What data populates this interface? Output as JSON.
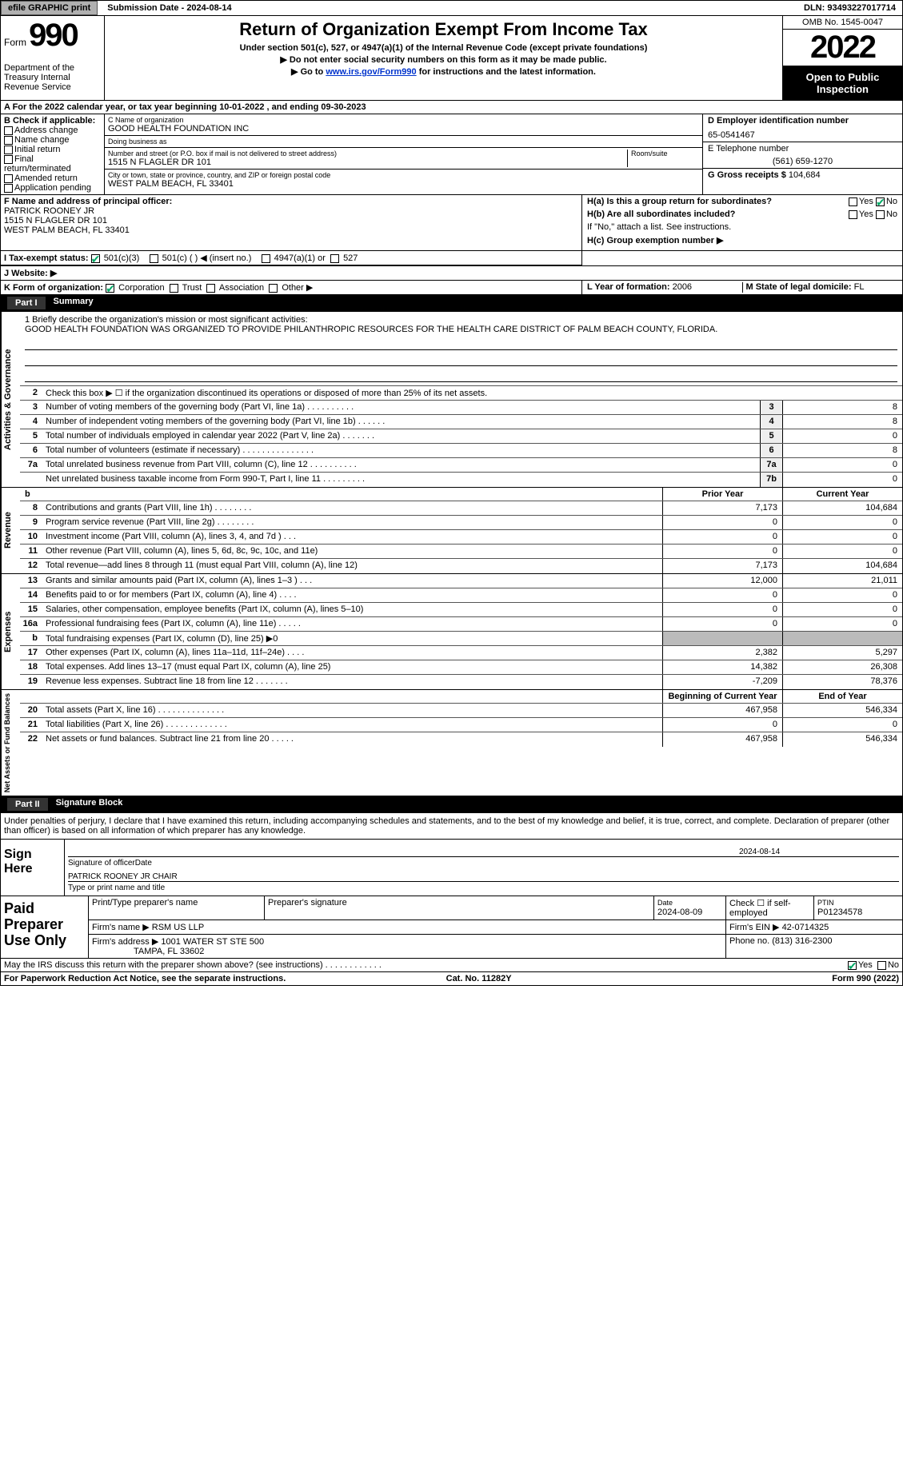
{
  "topbar": {
    "efile": "efile GRAPHIC print",
    "submission": "Submission Date - 2024-08-14",
    "dln": "DLN: 93493227017714"
  },
  "header": {
    "form_word": "Form",
    "form_no": "990",
    "title": "Return of Organization Exempt From Income Tax",
    "sub1": "Under section 501(c), 527, or 4947(a)(1) of the Internal Revenue Code (except private foundations)",
    "sub2": "▶ Do not enter social security numbers on this form as it may be made public.",
    "sub3_pre": "▶ Go to ",
    "sub3_link": "www.irs.gov/Form990",
    "sub3_post": " for instructions and the latest information.",
    "dept": "Department of the Treasury Internal Revenue Service",
    "omb": "OMB No. 1545-0047",
    "year": "2022",
    "inspect": "Open to Public Inspection"
  },
  "lineA": "A For the 2022 calendar year, or tax year beginning 10-01-2022    , and ending 09-30-2023",
  "checkB": {
    "label": "B Check if applicable:",
    "opts": [
      "Address change",
      "Name change",
      "Initial return",
      "Final return/terminated",
      "Amended return",
      "Application pending"
    ]
  },
  "orgC": {
    "name_lbl": "C Name of organization",
    "name": "GOOD HEALTH FOUNDATION INC",
    "dba_lbl": "Doing business as",
    "dba": "",
    "addr_lbl": "Number and street (or P.O. box if mail is not delivered to street address)",
    "room_lbl": "Room/suite",
    "addr": "1515 N FLAGLER DR 101",
    "city_lbl": "City or town, state or province, country, and ZIP or foreign postal code",
    "city": "WEST PALM BEACH, FL  33401"
  },
  "colD": {
    "ein_lbl": "D Employer identification number",
    "ein": "65-0541467",
    "tel_lbl": "E Telephone number",
    "tel": "(561) 659-1270",
    "gross_lbl": "G Gross receipts $",
    "gross": "104,684"
  },
  "secF": {
    "label": "F  Name and address of principal officer:",
    "name": "PATRICK ROONEY JR",
    "addr1": "1515 N FLAGLER DR 101",
    "addr2": "WEST PALM BEACH, FL  33401"
  },
  "secH": {
    "ha": "H(a)  Is this a group return for subordinates?",
    "hb": "H(b)  Are all subordinates included?",
    "hb_note": "If \"No,\" attach a list. See instructions.",
    "hc": "H(c)  Group exemption number ▶",
    "yes": "Yes",
    "no": "No"
  },
  "secI": {
    "label": "I  Tax-exempt status:",
    "o1": "501(c)(3)",
    "o2": "501(c) (  ) ◀ (insert no.)",
    "o3": "4947(a)(1) or",
    "o4": "527"
  },
  "secJ": "J  Website: ▶",
  "secK": {
    "label": "K Form of organization:",
    "o1": "Corporation",
    "o2": "Trust",
    "o3": "Association",
    "o4": "Other ▶"
  },
  "secL": {
    "label": "L Year of formation:",
    "val": "2006"
  },
  "secM": {
    "label": "M State of legal domicile:",
    "val": "FL"
  },
  "part1": {
    "no": "Part I",
    "title": "Summary"
  },
  "mission": {
    "lbl": "1   Briefly describe the organization's mission or most significant activities:",
    "text": "GOOD HEALTH FOUNDATION WAS ORGANIZED TO PROVIDE PHILANTHROPIC RESOURCES FOR THE HEALTH CARE DISTRICT OF PALM BEACH COUNTY, FLORIDA."
  },
  "vtabs": {
    "ag": "Activities & Governance",
    "rev": "Revenue",
    "exp": "Expenses",
    "nafb": "Net Assets or Fund Balances"
  },
  "ag_rows": [
    {
      "n": "2",
      "lbl": "Check this box ▶ ☐  if the organization discontinued its operations or disposed of more than 25% of its net assets."
    },
    {
      "n": "3",
      "lbl": "Number of voting members of the governing body (Part VI, line 1a)   .    .    .    .    .    .    .    .    .    .",
      "box": "3",
      "v": "8"
    },
    {
      "n": "4",
      "lbl": "Number of independent voting members of the governing body (Part VI, line 1b)   .    .    .    .    .    .",
      "box": "4",
      "v": "8"
    },
    {
      "n": "5",
      "lbl": "Total number of individuals employed in calendar year 2022 (Part V, line 2a)   .    .    .    .    .    .    .",
      "box": "5",
      "v": "0"
    },
    {
      "n": "6",
      "lbl": "Total number of volunteers (estimate if necessary)    .    .    .    .    .    .    .    .    .    .    .    .    .    .    .",
      "box": "6",
      "v": "8"
    },
    {
      "n": "7a",
      "lbl": "Total unrelated business revenue from Part VIII, column (C), line 12    .    .    .    .    .    .    .    .    .    .",
      "box": "7a",
      "v": "0"
    },
    {
      "n": " ",
      "lbl": "Net unrelated business taxable income from Form 990-T, Part I, line 11   .    .    .    .    .    .    .    .    .",
      "box": "7b",
      "v": "0"
    }
  ],
  "yr_hdr": {
    "b": "b",
    "prior": "Prior Year",
    "current": "Current Year"
  },
  "rev_rows": [
    {
      "n": "8",
      "lbl": "Contributions and grants (Part VIII, line 1h)    .    .    .    .    .    .    .    .",
      "p": "7,173",
      "c": "104,684"
    },
    {
      "n": "9",
      "lbl": "Program service revenue (Part VIII, line 2g)    .    .    .    .    .    .    .    .",
      "p": "0",
      "c": "0"
    },
    {
      "n": "10",
      "lbl": "Investment income (Part VIII, column (A), lines 3, 4, and 7d )    .    .    .",
      "p": "0",
      "c": "0"
    },
    {
      "n": "11",
      "lbl": "Other revenue (Part VIII, column (A), lines 5, 6d, 8c, 9c, 10c, and 11e)",
      "p": "0",
      "c": "0"
    },
    {
      "n": "12",
      "lbl": "Total revenue—add lines 8 through 11 (must equal Part VIII, column (A), line 12)",
      "p": "7,173",
      "c": "104,684"
    }
  ],
  "exp_rows": [
    {
      "n": "13",
      "lbl": "Grants and similar amounts paid (Part IX, column (A), lines 1–3 )   .    .    .",
      "p": "12,000",
      "c": "21,011"
    },
    {
      "n": "14",
      "lbl": "Benefits paid to or for members (Part IX, column (A), line 4)    .    .    .    .",
      "p": "0",
      "c": "0"
    },
    {
      "n": "15",
      "lbl": "Salaries, other compensation, employee benefits (Part IX, column (A), lines 5–10)",
      "p": "0",
      "c": "0"
    },
    {
      "n": "16a",
      "lbl": "Professional fundraising fees (Part IX, column (A), line 11e)   .    .    .    .    .",
      "p": "0",
      "c": "0"
    },
    {
      "n": "b",
      "lbl": "Total fundraising expenses (Part IX, column (D), line 25) ▶0",
      "p": "",
      "c": "",
      "shade": true
    },
    {
      "n": "17",
      "lbl": "Other expenses (Part IX, column (A), lines 11a–11d, 11f–24e)   .    .    .    .",
      "p": "2,382",
      "c": "5,297"
    },
    {
      "n": "18",
      "lbl": "Total expenses. Add lines 13–17 (must equal Part IX, column (A), line 25)",
      "p": "14,382",
      "c": "26,308"
    },
    {
      "n": "19",
      "lbl": "Revenue less expenses. Subtract line 18 from line 12  .    .    .    .    .    .    .",
      "p": "-7,209",
      "c": "78,376"
    }
  ],
  "net_hdr": {
    "b": "Beginning of Current Year",
    "e": "End of Year"
  },
  "net_rows": [
    {
      "n": "20",
      "lbl": "Total assets (Part X, line 16)   .    .    .    .    .    .    .    .    .    .    .    .    .    .",
      "p": "467,958",
      "c": "546,334"
    },
    {
      "n": "21",
      "lbl": "Total liabilities (Part X, line 26)   .    .    .    .    .    .    .    .    .    .    .    .    .",
      "p": "0",
      "c": "0"
    },
    {
      "n": "22",
      "lbl": "Net assets or fund balances. Subtract line 21 from line 20   .    .    .    .    .",
      "p": "467,958",
      "c": "546,334"
    }
  ],
  "part2": {
    "no": "Part II",
    "title": "Signature Block"
  },
  "perjury": "Under penalties of perjury, I declare that I have examined this return, including accompanying schedules and statements, and to the best of my knowledge and belief, it is true, correct, and complete. Declaration of preparer (other than officer) is based on all information of which preparer has any knowledge.",
  "sign": {
    "here": "Sign Here",
    "sig_lbl": "Signature of officer",
    "date": "2024-08-14",
    "date_lbl": "Date",
    "name": "PATRICK ROONEY JR  CHAIR",
    "name_lbl": "Type or print name and title"
  },
  "paid": {
    "title": "Paid Preparer Use Only",
    "r1": {
      "c1": "Print/Type preparer's name",
      "c2": "Preparer's signature",
      "c3_lbl": "Date",
      "c3": "2024-08-09",
      "c4": "Check ☐ if self-employed",
      "c5_lbl": "PTIN",
      "c5": "P01234578"
    },
    "r2": {
      "c1": "Firm's name    ▶",
      "c1v": "RSM US LLP",
      "c2": "Firm's EIN ▶",
      "c2v": "42-0714325"
    },
    "r3": {
      "c1": "Firm's address ▶",
      "c1v1": "1001 WATER ST STE 500",
      "c1v2": "TAMPA, FL  33602",
      "c2": "Phone no.",
      "c2v": "(813) 316-2300"
    }
  },
  "discuss": {
    "q": "May the IRS discuss this return with the preparer shown above? (see instructions)   .    .    .    .    .    .    .    .    .    .    .    .",
    "yes": "Yes",
    "no": "No"
  },
  "footer": {
    "l": "For Paperwork Reduction Act Notice, see the separate instructions.",
    "c": "Cat. No. 11282Y",
    "r": "Form 990 (2022)"
  }
}
